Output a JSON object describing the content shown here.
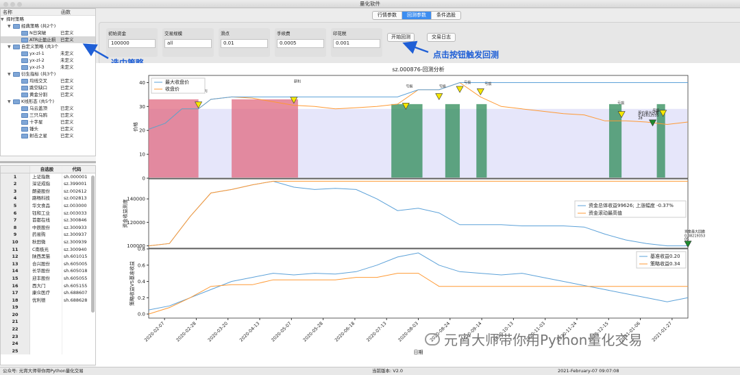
{
  "window": {
    "title": "量化软件"
  },
  "tree": {
    "col_name": "名称",
    "col_func": "函数",
    "root": "择时策略",
    "groups": [
      {
        "label": "经典策略 (共2个)",
        "items": [
          {
            "name": "N日突破",
            "status": "已定义"
          },
          {
            "name": "ATR止盈止损",
            "status": "已定义"
          }
        ]
      },
      {
        "label": "自定义策略 (共3个",
        "items": [
          {
            "name": "yx-zl-1",
            "status": "未定义"
          },
          {
            "name": "yx-zl-2",
            "status": "未定义"
          },
          {
            "name": "yx-zl-3",
            "status": "未定义"
          }
        ]
      },
      {
        "label": "衍生指标 (共3个)",
        "items": [
          {
            "name": "均线交叉",
            "status": "已定义"
          },
          {
            "name": "跳空缺口",
            "status": "已定义"
          },
          {
            "name": "黄金分割",
            "status": "已定义"
          }
        ]
      },
      {
        "label": "K线形态 (共5个)",
        "items": [
          {
            "name": "乌云盖顶",
            "status": "已定义"
          },
          {
            "name": "三只乌鸦",
            "status": "已定义"
          },
          {
            "name": "十字星",
            "status": "已定义"
          },
          {
            "name": "锤头",
            "status": "已定义"
          },
          {
            "name": "射击之星",
            "status": "已定义"
          }
        ]
      }
    ]
  },
  "stock_table": {
    "col_name": "自选股",
    "col_code": "代码",
    "rows": [
      {
        "no": "1",
        "name": "上证指数",
        "code": "sh.000001"
      },
      {
        "no": "2",
        "name": "深证成指",
        "code": "sz.399001"
      },
      {
        "no": "3",
        "name": "朗姿股份",
        "code": "sz.002612"
      },
      {
        "no": "4",
        "name": "路畅科技",
        "code": "sz.002813"
      },
      {
        "no": "5",
        "name": "华文食品",
        "code": "sz.003000"
      },
      {
        "no": "6",
        "name": "钰和工业",
        "code": "sz.003033"
      },
      {
        "no": "7",
        "name": "首都在线",
        "code": "sz.300846"
      },
      {
        "no": "8",
        "name": "中辰股份",
        "code": "sz.300933"
      },
      {
        "no": "9",
        "name": "药易购",
        "code": "sz.300937"
      },
      {
        "no": "10",
        "name": "秋田微",
        "code": "sz.300939"
      },
      {
        "no": "11",
        "name": "C南极光",
        "code": "sz.300940"
      },
      {
        "no": "12",
        "name": "陕西黑猫",
        "code": "sh.601015"
      },
      {
        "no": "13",
        "name": "合兴股份",
        "code": "sh.605005"
      },
      {
        "no": "14",
        "name": "长华股份",
        "code": "sh.605018"
      },
      {
        "no": "15",
        "name": "迎丰股份",
        "code": "sh.605055"
      },
      {
        "no": "16",
        "name": "西大门",
        "code": "sh.605155"
      },
      {
        "no": "17",
        "name": "康众医疗",
        "code": "sh.688607"
      },
      {
        "no": "18",
        "name": "优利德",
        "code": "sh.688628"
      },
      {
        "no": "19",
        "name": "",
        "code": ""
      },
      {
        "no": "20",
        "name": "",
        "code": ""
      },
      {
        "no": "21",
        "name": "",
        "code": ""
      },
      {
        "no": "22",
        "name": "",
        "code": ""
      },
      {
        "no": "23",
        "name": "",
        "code": ""
      },
      {
        "no": "24",
        "name": "",
        "code": ""
      },
      {
        "no": "25",
        "name": "",
        "code": ""
      }
    ]
  },
  "tabs": [
    "行情参数",
    "回测参数",
    "条件选股"
  ],
  "params": [
    {
      "label": "初始资金",
      "value": "100000"
    },
    {
      "label": "交易规模",
      "value": "all"
    },
    {
      "label": "滑点",
      "value": "0.01"
    },
    {
      "label": "手续费",
      "value": "0.0005"
    },
    {
      "label": "印花税",
      "value": "0.001"
    }
  ],
  "buttons": {
    "start": "开始回测",
    "log": "交易日志"
  },
  "annotations": {
    "select": "选中策略",
    "click": "点击按钮触发回测"
  },
  "status": {
    "left": "公众号: 元宵大师带你用Python量化交易",
    "version": "当前版本: V2.0",
    "datetime": "2021-February-07 09:07:08"
  },
  "watermark": "元宵大师带你用Python量化交易",
  "colors": {
    "accent": "#3c8df0",
    "annotation": "#1f5fd6",
    "price_line": "#ff9933",
    "max_line": "#5aa0d8",
    "profit_fill": "#2e8b57",
    "loss_fill": "#e06a80",
    "band": "#e6e6fa"
  },
  "chart_data": [
    {
      "type": "line",
      "title": "sz.000876-回测分析",
      "ylabel": "价格",
      "ylim": [
        0,
        43
      ],
      "yticks": [
        0,
        10,
        20,
        30,
        40
      ],
      "series": [
        {
          "name": "最大收盘价"
        },
        {
          "name": "收盘价"
        }
      ],
      "marker_labels": [
        "获利",
        "获利",
        "亏损",
        "亏损",
        "亏损",
        "亏损",
        "亏损"
      ],
      "drawdown_label": "股价最大回撤",
      "drawdown_value": "0.41612535",
      "drawdown_value2": "28",
      "x": [
        0,
        8,
        16,
        24,
        30,
        40,
        50,
        60,
        70,
        80,
        90,
        100,
        110,
        120,
        130,
        140,
        150,
        160,
        170,
        180,
        190,
        200,
        210,
        220,
        230,
        240,
        250,
        260
      ],
      "values": [
        20.5,
        23,
        29,
        29,
        33,
        34,
        33.5,
        32,
        30.5,
        30,
        29,
        29.5,
        30,
        31,
        37,
        37,
        40,
        34,
        30,
        29,
        28,
        27,
        26.5,
        24,
        24,
        23.5,
        22.5,
        23.5
      ]
    },
    {
      "type": "line",
      "ylabel": "资金收益测度",
      "ylim": [
        98000,
        157000
      ],
      "yticks": [
        100000,
        120000,
        140000
      ],
      "series": [
        {
          "name": "资金总体收益99626; 上涨幅度 -0.37%"
        },
        {
          "name": "资金滚动最高值"
        }
      ],
      "drawdown_label": "资金最大回撤",
      "drawdown_value": "0.38219353",
      "drawdown_value2": "05",
      "x": [
        0,
        10,
        20,
        30,
        40,
        50,
        60,
        70,
        80,
        90,
        100,
        110,
        120,
        130,
        140,
        150,
        160,
        170,
        180,
        190,
        200,
        210,
        220,
        230,
        240,
        250,
        260
      ],
      "values": [
        100000,
        102000,
        125000,
        145000,
        148000,
        152000,
        155000,
        150000,
        148000,
        149000,
        148000,
        140000,
        130000,
        132000,
        128000,
        118000,
        118000,
        118000,
        117000,
        117000,
        117000,
        116000,
        110000,
        105000,
        102000,
        100000,
        100000
      ]
    },
    {
      "type": "line",
      "ylabel": "策略收益VS基准收益",
      "ylim": [
        -0.05,
        0.8
      ],
      "yticks": [
        0.0,
        0.2,
        0.4,
        0.6,
        0.8
      ],
      "series": [
        {
          "name": "基准收益0.20"
        },
        {
          "name": "策略收益0.34"
        }
      ],
      "xlabel": "日期",
      "x_ticks": [
        "2020-02-07",
        "2020-02-28",
        "2020-03-20",
        "2020-04-13",
        "2020-05-07",
        "2020-05-28",
        "2020-06-18",
        "2020-07-13",
        "2020-08-03",
        "2020-08-24",
        "2020-09-14",
        "2020-10-13",
        "2020-11-03",
        "2020-11-24",
        "2020-12-15",
        "2021-01-06",
        "2021-01-27"
      ],
      "x": [
        0,
        10,
        20,
        30,
        40,
        50,
        60,
        70,
        80,
        90,
        100,
        110,
        120,
        130,
        140,
        150,
        160,
        170,
        180,
        190,
        200,
        210,
        220,
        230,
        240,
        250,
        260
      ],
      "values": [
        0.05,
        0.1,
        0.2,
        0.3,
        0.4,
        0.45,
        0.5,
        0.48,
        0.5,
        0.49,
        0.52,
        0.6,
        0.7,
        0.75,
        0.6,
        0.52,
        0.5,
        0.48,
        0.5,
        0.45,
        0.4,
        0.35,
        0.3,
        0.25,
        0.2,
        0.15,
        0.2
      ],
      "values2": [
        0.0,
        0.08,
        0.2,
        0.34,
        0.36,
        0.36,
        0.42,
        0.42,
        0.42,
        0.42,
        0.45,
        0.45,
        0.5,
        0.5,
        0.34,
        0.34,
        0.34,
        0.34,
        0.34,
        0.34,
        0.34,
        0.34,
        0.34,
        0.34,
        0.34,
        0.34,
        0.34
      ]
    }
  ]
}
